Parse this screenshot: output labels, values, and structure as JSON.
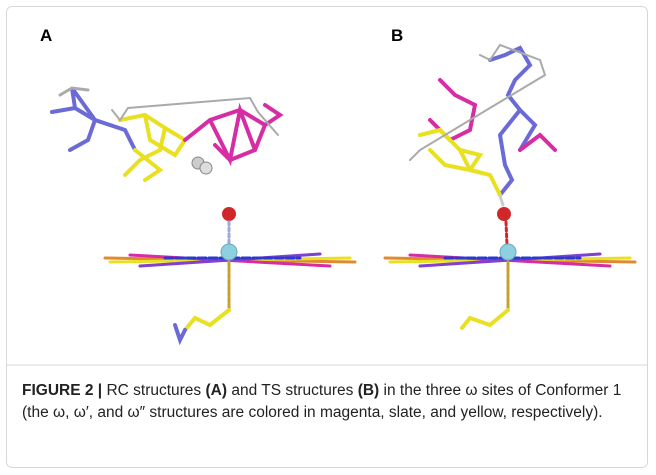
{
  "panels": [
    {
      "label": "A"
    },
    {
      "label": "B"
    }
  ],
  "caption": [
    {
      "text": "FIGURE 2 | ",
      "bold": true
    },
    {
      "text": "RC structures ",
      "bold": false
    },
    {
      "text": "(A)",
      "bold": true
    },
    {
      "text": " and TS structures ",
      "bold": false
    },
    {
      "text": "(B)",
      "bold": true
    },
    {
      "text": " in the three ω sites of Conformer 1 (the ω, ω′, and ω″ structures are colored in magenta, slate, and yellow, respectively).",
      "bold": false
    }
  ]
}
